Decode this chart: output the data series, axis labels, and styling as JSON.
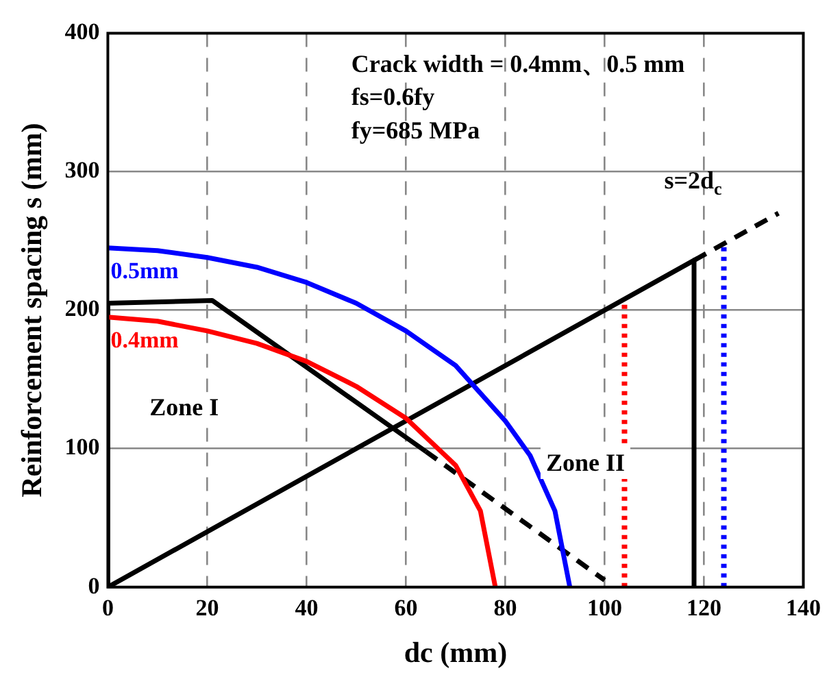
{
  "chart_data": {
    "type": "line",
    "xlabel": "dc (mm)",
    "ylabel": "Reinforcement spacing s (mm)",
    "xlim": [
      0,
      140
    ],
    "xticks": [
      0,
      20,
      40,
      60,
      80,
      100,
      120,
      140
    ],
    "ylim": [
      0,
      400
    ],
    "yticks": [
      0,
      100,
      200,
      300,
      400
    ],
    "grid": true,
    "legend": false,
    "marker": "none",
    "series": [
      {
        "name": "0.5mm",
        "color": "#0000ff",
        "line_style": "solid",
        "x": [
          0,
          10,
          20,
          30,
          40,
          50,
          60,
          70,
          80,
          85,
          90,
          93
        ],
        "values": [
          245,
          243,
          238,
          231,
          220,
          205,
          185,
          160,
          120,
          95,
          55,
          0
        ]
      },
      {
        "name": "0.4mm",
        "color": "#ff0000",
        "line_style": "solid",
        "x": [
          0,
          10,
          20,
          30,
          40,
          50,
          60,
          70,
          75,
          78
        ],
        "values": [
          195,
          192,
          185,
          176,
          163,
          145,
          122,
          88,
          55,
          0
        ]
      },
      {
        "color": "#000000",
        "line_style": "solid",
        "x": [
          0,
          0,
          21,
          64
        ],
        "values": [
          0,
          205,
          207,
          98
        ]
      },
      {
        "color": "#000000",
        "line_style": "dashed",
        "x": [
          64,
          100
        ],
        "values": [
          98,
          5
        ]
      },
      {
        "color": "#000000",
        "line_style": "solid",
        "x": [
          0,
          118,
          118
        ],
        "values": [
          0,
          236,
          0
        ]
      },
      {
        "color": "#000000",
        "line_style": "dashed",
        "x": [
          118,
          135
        ],
        "values": [
          236,
          270
        ]
      },
      {
        "color": "#ff0000",
        "line_style": "dotted",
        "x": [
          104,
          104
        ],
        "values": [
          0,
          208
        ]
      },
      {
        "color": "#0000ff",
        "line_style": "dotted",
        "x": [
          124,
          124
        ],
        "values": [
          0,
          248
        ]
      }
    ],
    "annotations": [
      "Crack width = 0.4mm、0.5 mm",
      "fs=0.6fy",
      "fy=685 MPa",
      "s=2d$_{c}$",
      "Zone I",
      "Zone II"
    ]
  }
}
